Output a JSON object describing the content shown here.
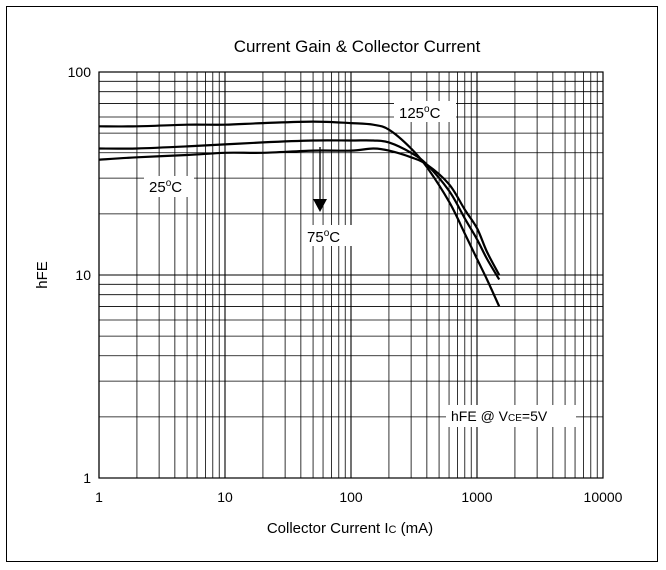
{
  "chart_data": {
    "type": "line",
    "title": "Current Gain & Collector Current",
    "xlabel": "Collector Current IC (mA)",
    "ylabel": "hFE",
    "x_scale": "log",
    "y_scale": "log",
    "xlim": [
      1,
      10000
    ],
    "ylim": [
      1,
      100
    ],
    "grid": true,
    "x_ticks": [
      "1",
      "10",
      "100",
      "1000",
      "10000"
    ],
    "y_ticks": [
      "1",
      "10",
      "100"
    ],
    "series": [
      {
        "name": "125°C",
        "x": [
          1,
          2,
          5,
          10,
          20,
          50,
          100,
          150,
          200,
          300,
          400,
          600,
          800,
          1000,
          1200,
          1500
        ],
        "y": [
          54,
          54,
          55,
          55,
          56,
          57,
          56,
          55,
          52,
          42,
          34,
          23,
          16,
          12,
          9.5,
          7
        ]
      },
      {
        "name": "75°C",
        "x": [
          1,
          2,
          5,
          10,
          20,
          50,
          100,
          150,
          200,
          300,
          400,
          600,
          800,
          1000,
          1200,
          1500
        ],
        "y": [
          42,
          42,
          43,
          44,
          45,
          46,
          46,
          46,
          45,
          40,
          35,
          26,
          19,
          15,
          12,
          9.5
        ]
      },
      {
        "name": "25°C",
        "x": [
          1,
          2,
          5,
          10,
          20,
          50,
          100,
          150,
          200,
          300,
          400,
          600,
          800,
          1000,
          1200,
          1500
        ],
        "y": [
          37,
          38,
          39,
          40,
          40,
          41,
          41,
          42,
          41,
          38,
          35,
          28,
          21,
          17,
          13,
          10
        ]
      }
    ],
    "annotations": {
      "t125": {
        "main": "125",
        "sup": "o",
        "tail": "C"
      },
      "t75": {
        "main": "75",
        "sup": "o",
        "tail": "C"
      },
      "t25": {
        "main": "25",
        "sup": "o",
        "tail": "C"
      },
      "condition": {
        "a": "hFE  @  V",
        "b": "CE",
        "c": "=5V"
      }
    },
    "xlabel_parts": {
      "a": "Collector Current I",
      "b": "C",
      "c": " (mA)"
    }
  }
}
